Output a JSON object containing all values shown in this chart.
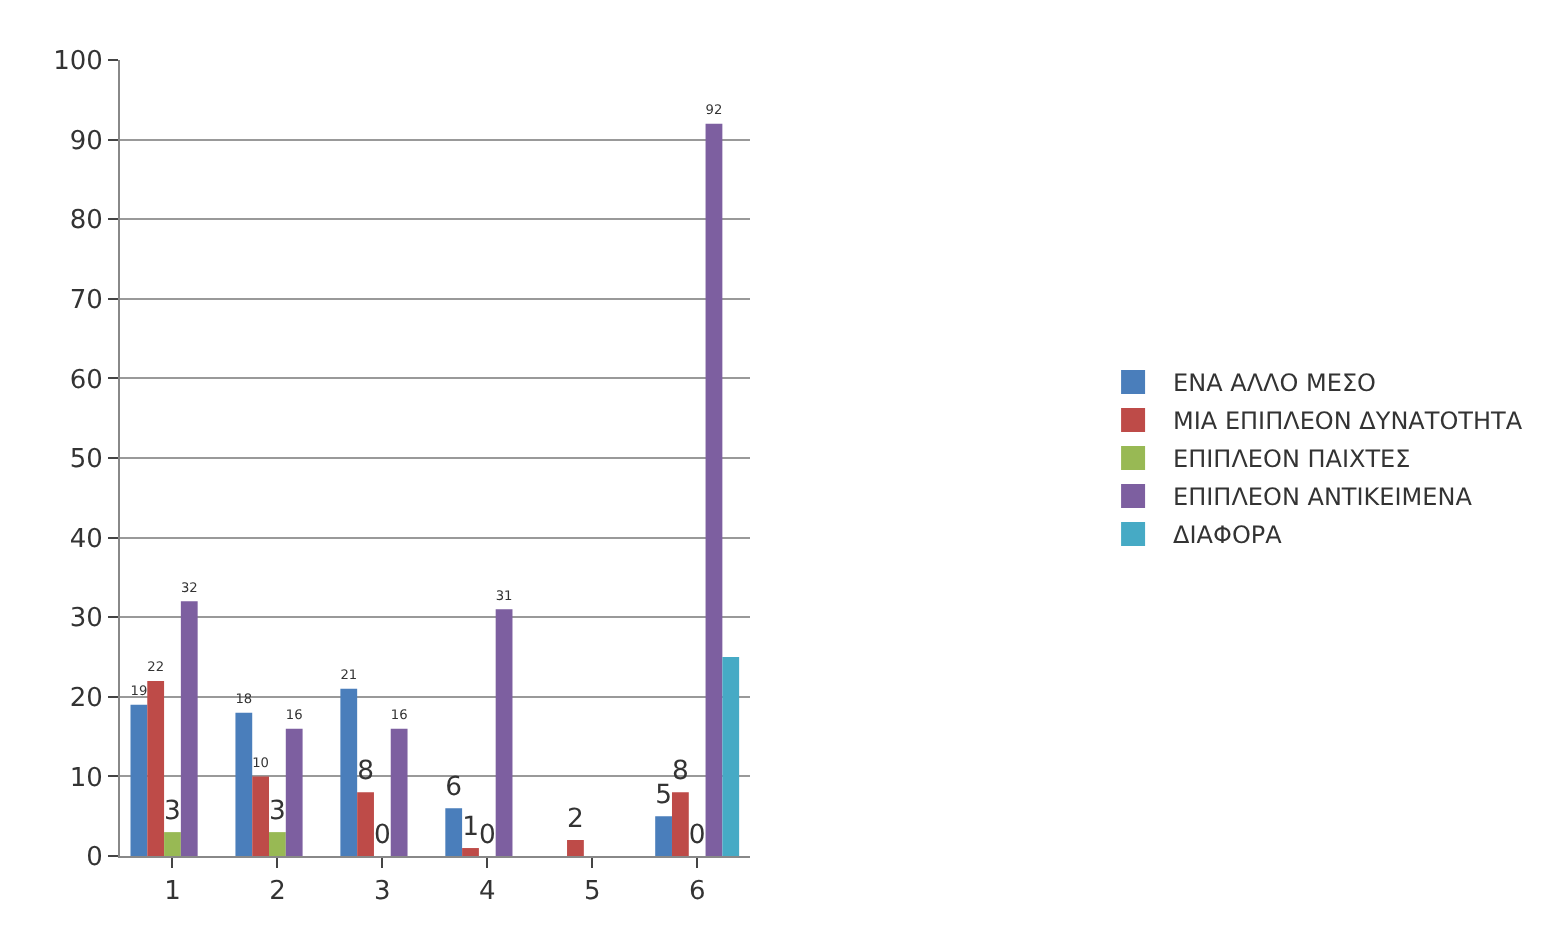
{
  "chart_data": {
    "type": "bar",
    "categories": [
      "1",
      "2",
      "3",
      "4",
      "5",
      "6"
    ],
    "series": [
      {
        "name": "ΕΝΑ ΑΛΛΟ ΜΕΣΟ",
        "color": "#4a7ebb",
        "values": [
          19,
          18,
          21,
          6,
          null,
          5
        ],
        "value_labels": [
          "19",
          "18",
          "21",
          "6",
          null,
          "5"
        ]
      },
      {
        "name": "ΜΙΑ ΕΠΙΠΛΕΟΝ ΔΥΝΑΤΟΤΗΤΑ",
        "color": "#be4b48",
        "values": [
          22,
          10,
          8,
          1,
          2,
          8
        ],
        "value_labels": [
          "22",
          "10",
          "8",
          "1",
          "2",
          "8"
        ]
      },
      {
        "name": "ΕΠΙΠΛΕΟΝ ΠΑΙΧΤΕΣ",
        "color": "#98b954",
        "values": [
          3,
          3,
          0,
          0,
          null,
          0
        ],
        "value_labels": [
          "3",
          "3",
          "0",
          "0",
          null,
          "0"
        ]
      },
      {
        "name": "ΕΠΙΠΛΕΟΝ ΑΝΤΙΚΕΙΜΕΝΑ",
        "color": "#7d5fa0",
        "values": [
          32,
          16,
          16,
          31,
          null,
          92
        ],
        "value_labels": [
          "32",
          "16",
          "16",
          "31",
          null,
          "92"
        ]
      },
      {
        "name": "ΔΙΑΦΟΡΑ",
        "color": "#46aac5",
        "values": [
          null,
          null,
          null,
          null,
          null,
          25
        ],
        "value_labels": [
          null,
          null,
          null,
          null,
          null,
          null
        ]
      }
    ],
    "ylim": [
      0,
      100
    ],
    "yticks": [
      0,
      10,
      20,
      30,
      40,
      50,
      60,
      70,
      80,
      90,
      100
    ],
    "grid": "y",
    "legend": "right"
  }
}
